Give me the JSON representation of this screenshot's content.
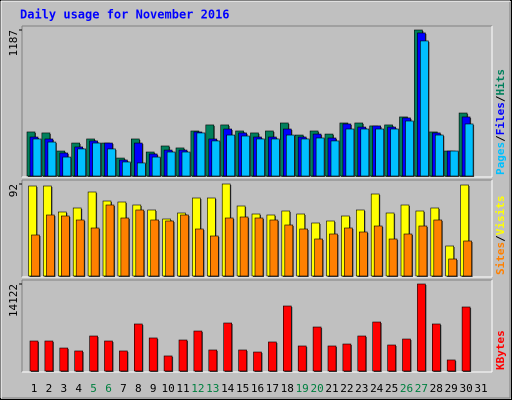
{
  "chart_data": [
    {
      "type": "bar",
      "title": "Daily usage for November 2016",
      "legend_separator": "/",
      "categories": [
        "1",
        "2",
        "3",
        "4",
        "5",
        "6",
        "7",
        "8",
        "9",
        "10",
        "11",
        "12",
        "13",
        "14",
        "15",
        "16",
        "17",
        "18",
        "19",
        "20",
        "21",
        "22",
        "23",
        "24",
        "25",
        "26",
        "27",
        "28",
        "29",
        "30",
        "31"
      ],
      "ylim": [
        0,
        1187
      ],
      "yticks": [
        1187
      ],
      "series": [
        {
          "name": "Hits",
          "color": "#00805c",
          "values": [
            358,
            350,
            203,
            268,
            301,
            268,
            146,
            301,
            195,
            244,
            228,
            366,
            415,
            415,
            366,
            350,
            366,
            431,
            333,
            366,
            341,
            431,
            431,
            407,
            415,
            480,
            1187,
            358,
            203,
            512,
            null
          ]
        },
        {
          "name": "Files",
          "color": "#0000ff",
          "values": [
            317,
            301,
            187,
            236,
            285,
            268,
            130,
            268,
            179,
            211,
            211,
            358,
            301,
            382,
            350,
            317,
            317,
            382,
            317,
            341,
            309,
            423,
            398,
            407,
            398,
            472,
            1163,
            350,
            203,
            480,
            null
          ]
        },
        {
          "name": "Pages",
          "color": "#00c0ff",
          "values": [
            301,
            276,
            154,
            220,
            268,
            220,
            114,
            106,
            154,
            195,
            195,
            350,
            285,
            333,
            325,
            301,
            301,
            333,
            301,
            309,
            285,
            382,
            382,
            382,
            382,
            447,
            1098,
            333,
            203,
            423,
            null
          ]
        }
      ]
    },
    {
      "type": "bar",
      "legend_separator": "/",
      "categories": [
        "1",
        "2",
        "3",
        "4",
        "5",
        "6",
        "7",
        "8",
        "9",
        "10",
        "11",
        "12",
        "13",
        "14",
        "15",
        "16",
        "17",
        "18",
        "19",
        "20",
        "21",
        "22",
        "23",
        "24",
        "25",
        "26",
        "27",
        "28",
        "29",
        "30",
        "31"
      ],
      "ylim": [
        0,
        92
      ],
      "yticks": [
        92
      ],
      "series": [
        {
          "name": "Visits",
          "color": "#ffff00",
          "values": [
            90,
            90,
            64,
            68,
            84,
            75,
            74,
            71,
            66,
            57,
            63,
            78,
            78,
            92,
            70,
            62,
            61,
            65,
            62,
            53,
            55,
            60,
            66,
            82,
            63,
            71,
            65,
            68,
            30,
            91,
            null
          ]
        },
        {
          "name": "Sites",
          "color": "#ff8000",
          "values": [
            41,
            61,
            60,
            56,
            48,
            71,
            58,
            66,
            56,
            55,
            61,
            47,
            40,
            58,
            59,
            58,
            56,
            51,
            47,
            37,
            42,
            48,
            44,
            50,
            37,
            42,
            50,
            56,
            17,
            35,
            null
          ]
        }
      ]
    },
    {
      "type": "bar",
      "categories": [
        "1",
        "2",
        "3",
        "4",
        "5",
        "6",
        "7",
        "8",
        "9",
        "10",
        "11",
        "12",
        "13",
        "14",
        "15",
        "16",
        "17",
        "18",
        "19",
        "20",
        "21",
        "22",
        "23",
        "24",
        "25",
        "26",
        "27",
        "28",
        "29",
        "30",
        "31"
      ],
      "category_colors": [
        "#000000",
        "#000000",
        "#000000",
        "#000000",
        "#008040",
        "#008040",
        "#000000",
        "#000000",
        "#000000",
        "#000000",
        "#000000",
        "#008040",
        "#008040",
        "#000000",
        "#000000",
        "#000000",
        "#000000",
        "#000000",
        "#008040",
        "#008040",
        "#000000",
        "#000000",
        "#000000",
        "#000000",
        "#000000",
        "#008040",
        "#008040",
        "#000000",
        "#000000",
        "#000000",
        "#000000"
      ],
      "ylim": [
        0,
        14122
      ],
      "yticks": [
        14122
      ],
      "series": [
        {
          "name": "KBytes",
          "color": "#ff0000",
          "values": [
            4870,
            4870,
            3730,
            3250,
            5680,
            4870,
            3250,
            7630,
            5360,
            2440,
            5030,
            6490,
            3410,
            7790,
            3410,
            3080,
            4710,
            10550,
            4060,
            7140,
            4060,
            4380,
            5680,
            7950,
            4220,
            5190,
            14122,
            7630,
            1790,
            10390,
            null
          ]
        }
      ]
    }
  ]
}
